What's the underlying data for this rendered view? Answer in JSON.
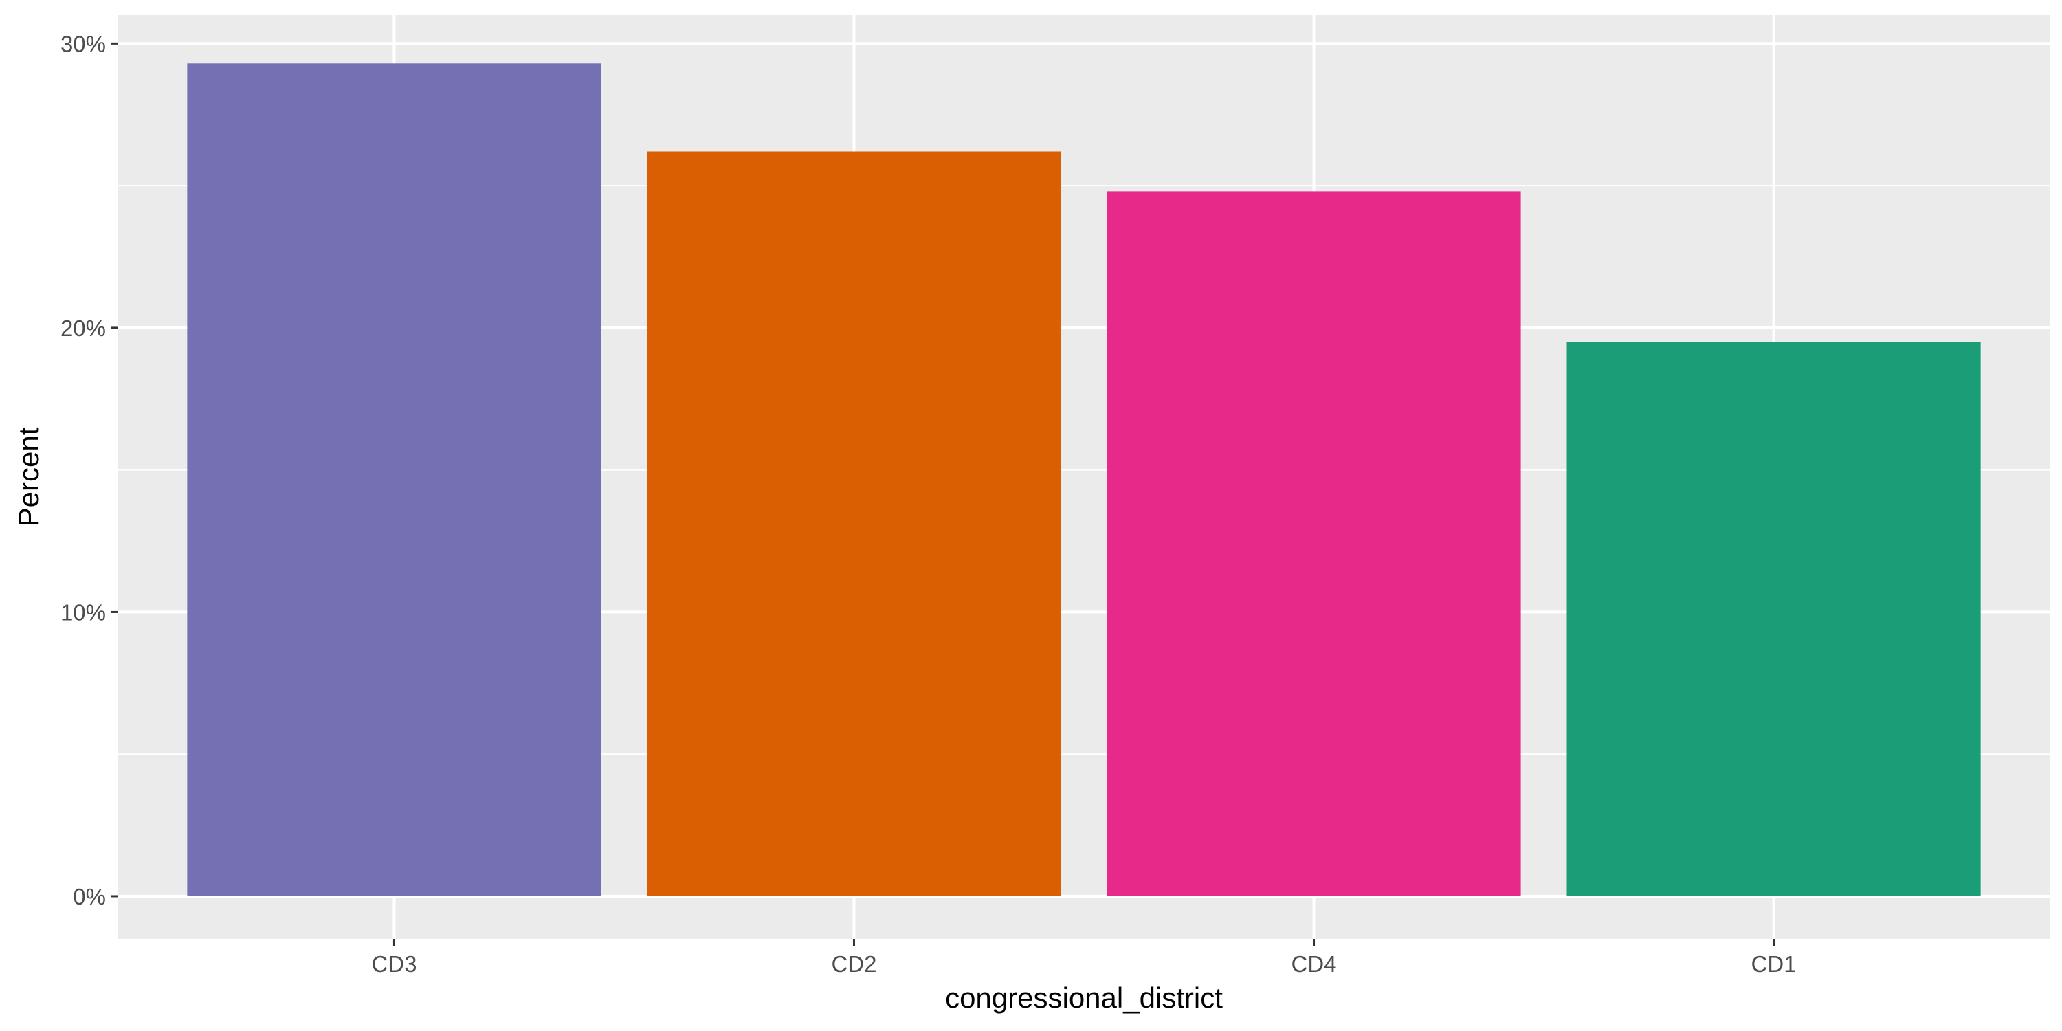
{
  "chart_data": {
    "type": "bar",
    "title": "",
    "xlabel": "congressional_district",
    "ylabel": "Percent",
    "categories": [
      "CD3",
      "CD2",
      "CD4",
      "CD1"
    ],
    "values": [
      29.3,
      26.2,
      24.8,
      19.5
    ],
    "colors": [
      "#7570B3",
      "#D95F02",
      "#E7298A",
      "#1B9E77"
    ],
    "ylim": [
      -1.5,
      31
    ],
    "yticks": [
      0,
      10,
      20,
      30
    ],
    "ytick_labels": [
      "0%",
      "10%",
      "20%",
      "30%"
    ],
    "grid": true,
    "legend": "none",
    "panel_background": "#EBEBEB",
    "grid_color": "#FFFFFF"
  }
}
